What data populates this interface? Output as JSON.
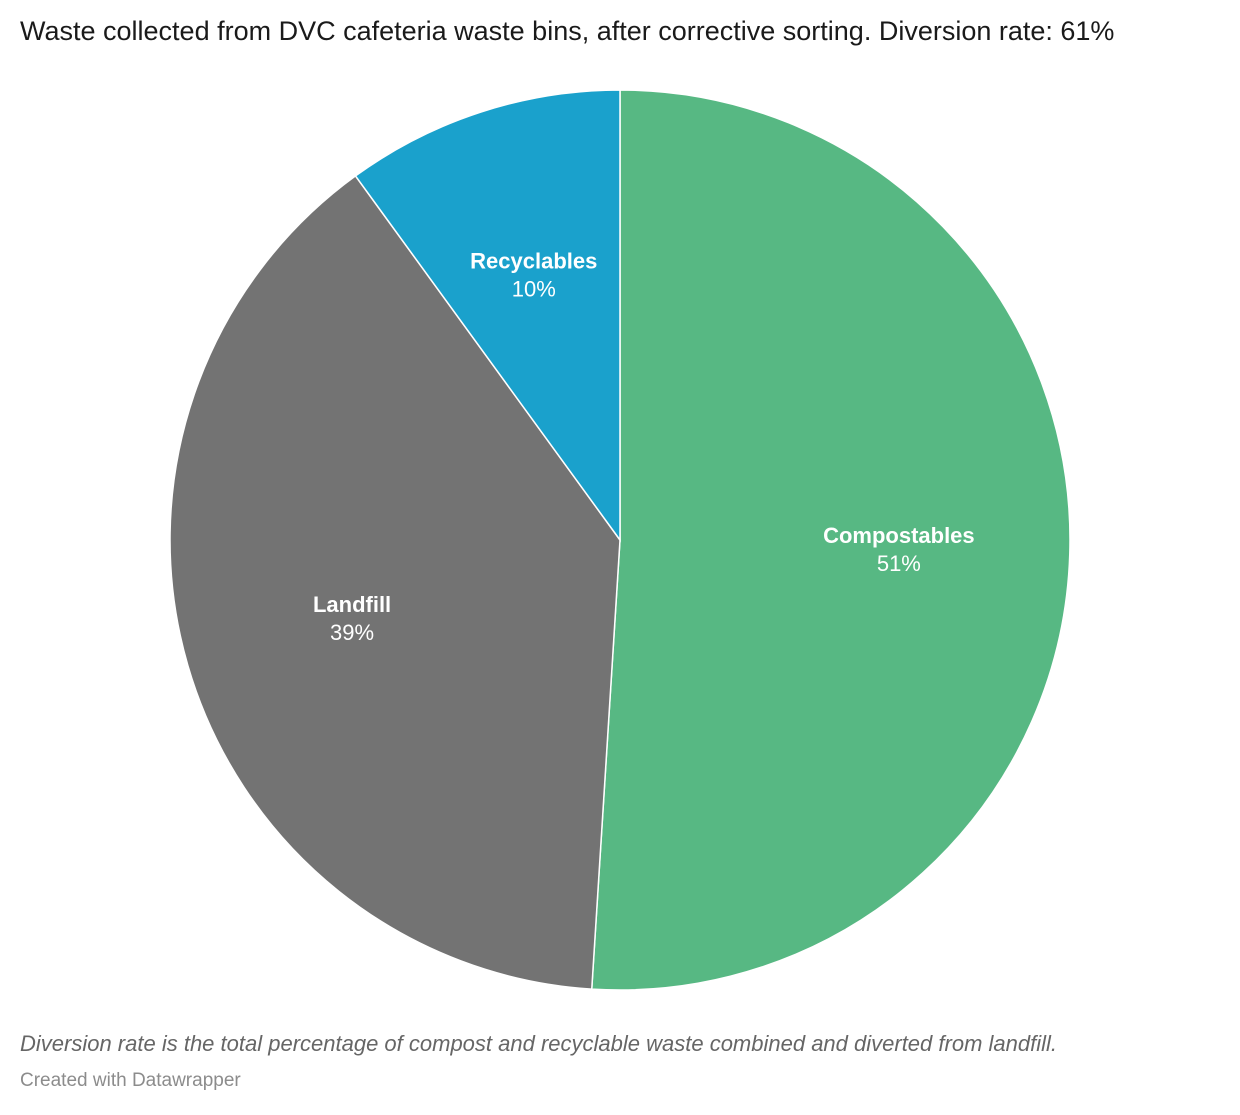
{
  "chart_data": {
    "type": "pie",
    "title": "Waste collected from DVC cafeteria waste bins, after corrective sorting. Diversion rate: 61%",
    "slices": [
      {
        "label": "Compostables",
        "value": 51,
        "display": "51%",
        "color": "#57b883"
      },
      {
        "label": "Landfill",
        "value": 39,
        "display": "39%",
        "color": "#737373"
      },
      {
        "label": "Recyclables",
        "value": 10,
        "display": "10%",
        "color": "#1aa1cc"
      }
    ],
    "note": "Diversion rate is the total percentage of compost and recyclable waste combined and diverted from landfill.",
    "credit": "Created with Datawrapper"
  }
}
